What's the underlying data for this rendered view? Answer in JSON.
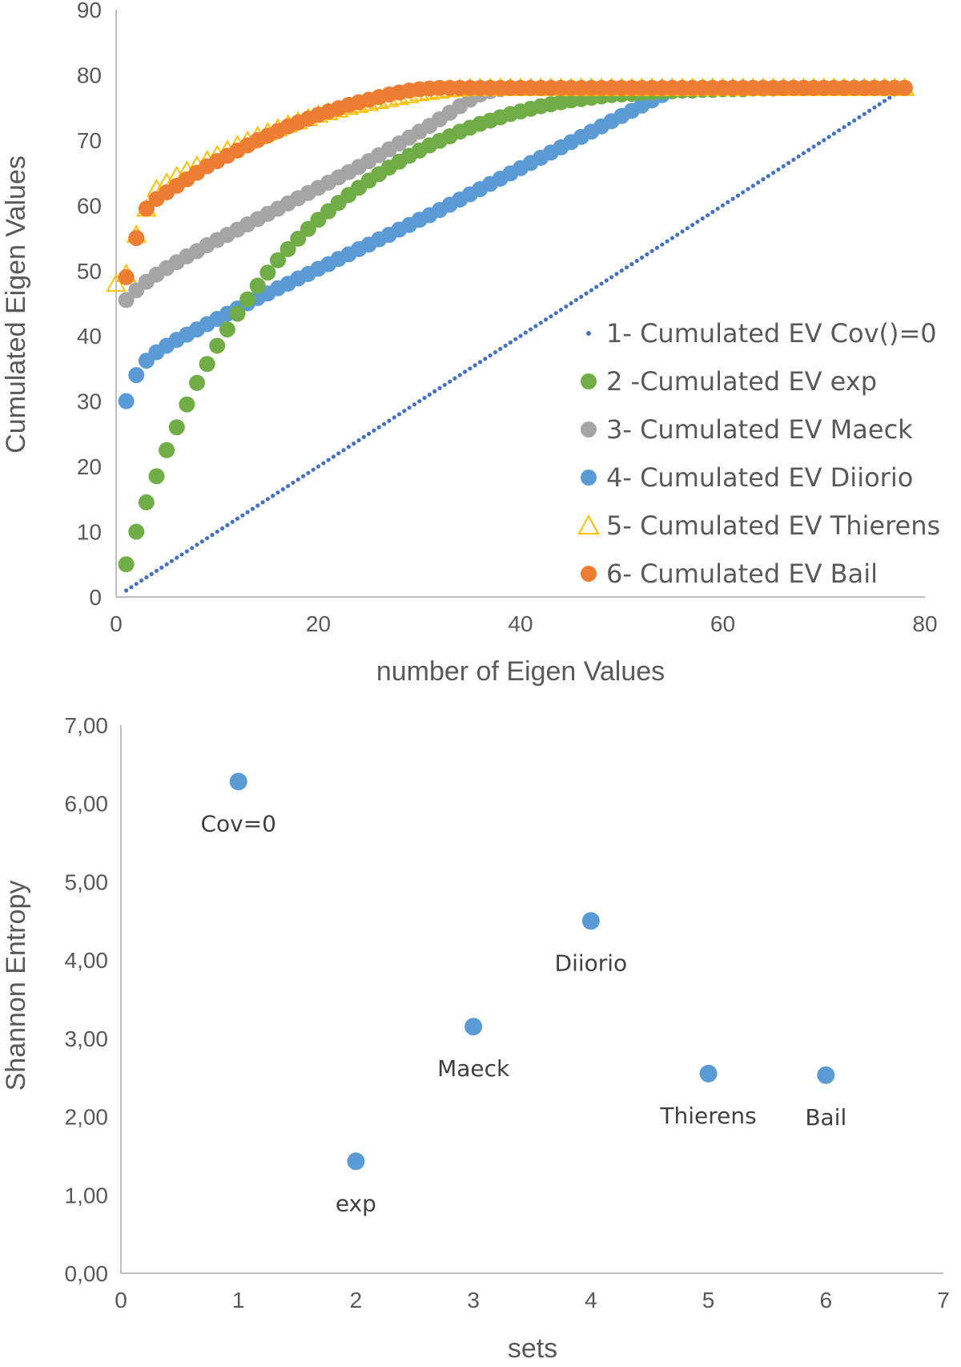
{
  "colors": {
    "cov0": "#4472c4",
    "exp": "#70ad47",
    "maeck": "#a5a5a5",
    "diiorio": "#5b9bd5",
    "thierens": "#ffc000",
    "bail": "#ed7d31",
    "entropy_points": "#5b9bd5",
    "axis": "#bfbfbf",
    "text": "#595959"
  },
  "chart_data": [
    {
      "type": "scatter",
      "title": "",
      "xlabel": "number of Eigen Values",
      "ylabel": "Cumulated Eigen Values",
      "xlim": [
        0,
        80
      ],
      "ylim": [
        0,
        90
      ],
      "x_ticks": [
        "0",
        "20",
        "40",
        "60",
        "80"
      ],
      "y_ticks": [
        "0",
        "10",
        "20",
        "30",
        "40",
        "50",
        "60",
        "70",
        "80",
        "90"
      ],
      "legend_position": "right",
      "series": [
        {
          "name": "1- Cumulated EV Cov()=0",
          "key": "cov0",
          "marker": "small-dot",
          "x": [
            1,
            78
          ],
          "y": [
            1,
            78
          ],
          "sampling": "every 0.5 eigen value, linear"
        },
        {
          "name": "2 -Cumulated EV exp",
          "key": "exp",
          "marker": "circle",
          "x": [
            1,
            2,
            3,
            4,
            5,
            6,
            7,
            8,
            9,
            10,
            11,
            12,
            13,
            14,
            15,
            16,
            17,
            18,
            19,
            20,
            21,
            22,
            23,
            24,
            25,
            26,
            27,
            28,
            29,
            30,
            31,
            32,
            33,
            34,
            35,
            36,
            37,
            38,
            39,
            40,
            41,
            42,
            43,
            44,
            45,
            46,
            47,
            48,
            49,
            50,
            51,
            52,
            53,
            54,
            55,
            56,
            57,
            58,
            59,
            60,
            61,
            62,
            63,
            64,
            65,
            66,
            67,
            68,
            69,
            70,
            71,
            72,
            73,
            74,
            75,
            76,
            77,
            78
          ],
          "y": [
            5,
            10,
            14.5,
            18.5,
            22.5,
            26,
            29.5,
            32.8,
            35.7,
            38.5,
            41,
            43.4,
            45.6,
            47.7,
            49.7,
            51.6,
            53.3,
            54.9,
            56.4,
            57.8,
            59.1,
            60.4,
            61.6,
            62.7,
            63.8,
            64.8,
            65.8,
            66.7,
            67.6,
            68.4,
            69.2,
            69.9,
            70.6,
            71.3,
            71.9,
            72.5,
            73,
            73.5,
            74,
            74.4,
            74.8,
            75.2,
            75.5,
            75.8,
            76.1,
            76.3,
            76.5,
            76.7,
            76.9,
            77,
            77.1,
            77.2,
            77.3,
            77.4,
            77.5,
            77.6,
            77.6,
            77.7,
            77.7,
            77.8,
            77.8,
            77.8,
            77.9,
            77.9,
            77.9,
            78,
            78,
            78,
            78,
            78,
            78,
            78,
            78,
            78,
            78,
            78,
            78,
            78
          ]
        },
        {
          "name": "3- Cumulated EV Maeck",
          "key": "maeck",
          "marker": "circle",
          "x": [
            1,
            2,
            3,
            4,
            5,
            6,
            7,
            8,
            9,
            10,
            11,
            12,
            13,
            14,
            15,
            16,
            17,
            18,
            19,
            20,
            21,
            22,
            23,
            24,
            25,
            26,
            27,
            28,
            29,
            30,
            31,
            32,
            33,
            34,
            35,
            36,
            37,
            38,
            39,
            40
          ],
          "y": [
            45.5,
            47,
            48.3,
            49.4,
            50.4,
            51.3,
            52.2,
            53,
            53.9,
            54.7,
            55.5,
            56.3,
            57.1,
            57.9,
            58.7,
            59.5,
            60.3,
            61.1,
            61.9,
            62.7,
            63.5,
            64.3,
            65.1,
            65.9,
            66.8,
            67.7,
            68.6,
            69.5,
            70.4,
            71.3,
            72.2,
            73.2,
            74.2,
            75.2,
            76.2,
            77,
            77.5,
            77.8,
            78,
            78
          ]
        },
        {
          "name": "4- Cumulated EV Diiorio",
          "key": "diiorio",
          "marker": "circle",
          "x": [
            1,
            2,
            3,
            4,
            5,
            6,
            7,
            8,
            9,
            10,
            11,
            12,
            13,
            14,
            15,
            16,
            17,
            18,
            19,
            20,
            21,
            22,
            23,
            24,
            25,
            26,
            27,
            28,
            29,
            30,
            31,
            32,
            33,
            34,
            35,
            36,
            37,
            38,
            39,
            40,
            41,
            42,
            43,
            44,
            45,
            46,
            47,
            48,
            49,
            50,
            51,
            52,
            53,
            54,
            55,
            56,
            57,
            58,
            59,
            60,
            61,
            62,
            63,
            64,
            65,
            66,
            67,
            68,
            69,
            70,
            71,
            72,
            73,
            74,
            75,
            76,
            77,
            78
          ],
          "y": [
            30,
            34,
            36.2,
            37.5,
            38.5,
            39.4,
            40.2,
            41,
            41.8,
            42.6,
            43.4,
            44.2,
            45,
            45.8,
            46.5,
            47.3,
            48,
            48.8,
            49.5,
            50.3,
            51,
            51.8,
            52.5,
            53.3,
            54,
            54.8,
            55.5,
            56.3,
            57,
            57.8,
            58.5,
            59.3,
            60.1,
            60.9,
            61.7,
            62.5,
            63.3,
            64.1,
            64.9,
            65.7,
            66.5,
            67.3,
            68.1,
            68.9,
            69.7,
            70.5,
            71.3,
            72.1,
            72.9,
            73.7,
            74.5,
            75.3,
            76.1,
            76.9,
            77.5,
            77.8,
            78,
            78,
            78,
            78,
            78,
            78,
            78,
            78,
            78,
            78,
            78,
            78,
            78,
            78,
            78,
            78,
            78,
            78,
            78,
            78,
            78,
            78
          ]
        },
        {
          "name": "5- Cumulated EV Thierens",
          "key": "thierens",
          "marker": "triangle",
          "x": [
            0,
            1,
            2,
            3,
            4,
            5,
            6,
            7,
            8,
            9,
            10,
            11,
            12,
            13,
            14,
            15,
            16,
            17,
            18,
            19,
            20,
            21,
            22,
            23,
            24,
            25,
            26,
            27,
            28,
            29,
            30,
            31,
            32,
            33,
            34,
            35,
            36,
            37,
            38,
            39,
            40,
            41,
            42,
            43,
            44,
            45,
            46,
            47,
            48,
            49,
            50,
            51,
            52,
            53,
            54,
            55,
            56,
            57,
            58,
            59,
            60,
            61,
            62,
            63,
            64,
            65,
            66,
            67,
            68,
            69,
            70,
            71,
            72,
            73,
            74,
            75,
            76,
            77,
            78
          ],
          "y": [
            48,
            49.5,
            55.5,
            59.5,
            62.5,
            63.5,
            64.5,
            65.3,
            66.1,
            66.9,
            67.7,
            68.5,
            69.2,
            69.9,
            70.6,
            71.2,
            71.8,
            72.4,
            72.9,
            73.4,
            73.9,
            74.3,
            74.7,
            75.1,
            75.4,
            75.7,
            76,
            76.3,
            76.6,
            76.9,
            77.2,
            77.4,
            77.6,
            77.8,
            77.9,
            78,
            78,
            78,
            78,
            78,
            78,
            78,
            78,
            78,
            78,
            78,
            78,
            78,
            78,
            78,
            78,
            78,
            78,
            78,
            78,
            78,
            78,
            78,
            78,
            78,
            78,
            78,
            78,
            78,
            78,
            78,
            78,
            78,
            78,
            78,
            78,
            78,
            78,
            78,
            78,
            78,
            78,
            78,
            78
          ]
        },
        {
          "name": "6- Cumulated EV Bail",
          "key": "bail",
          "marker": "circle",
          "x": [
            1,
            2,
            3,
            4,
            5,
            6,
            7,
            8,
            9,
            10,
            11,
            12,
            13,
            14,
            15,
            16,
            17,
            18,
            19,
            20,
            21,
            22,
            23,
            24,
            25,
            26,
            27,
            28,
            29,
            30,
            31,
            32,
            33,
            34,
            35,
            36,
            37,
            38,
            39,
            40,
            41,
            42,
            43,
            44,
            45,
            46,
            47,
            48,
            49,
            50,
            51,
            52,
            53,
            54,
            55,
            56,
            57,
            58,
            59,
            60,
            61,
            62,
            63,
            64,
            65,
            66,
            67,
            68,
            69,
            70,
            71,
            72,
            73,
            74,
            75,
            76,
            77,
            78
          ],
          "y": [
            49,
            55,
            59.5,
            61,
            62,
            63,
            64,
            65,
            66,
            66.8,
            67.6,
            68.4,
            69.2,
            70,
            70.7,
            71.4,
            72.1,
            72.7,
            73.3,
            73.9,
            74.4,
            74.9,
            75.4,
            75.8,
            76.2,
            76.6,
            77,
            77.3,
            77.6,
            77.8,
            77.9,
            78,
            78,
            78,
            78,
            78,
            78,
            78,
            78,
            78,
            78,
            78,
            78,
            78,
            78,
            78,
            78,
            78,
            78,
            78,
            78,
            78,
            78,
            78,
            78,
            78,
            78,
            78,
            78,
            78,
            78,
            78,
            78,
            78,
            78,
            78,
            78,
            78,
            78,
            78,
            78,
            78,
            78,
            78,
            78,
            78,
            78,
            78
          ]
        }
      ]
    },
    {
      "type": "scatter",
      "title": "",
      "xlabel": "sets",
      "ylabel": "Shannon Entropy",
      "xlim": [
        0,
        7
      ],
      "ylim": [
        0,
        7
      ],
      "x_ticks": [
        "0",
        "1",
        "2",
        "3",
        "4",
        "5",
        "6",
        "7"
      ],
      "y_ticks": [
        "0,00",
        "1,00",
        "2,00",
        "3,00",
        "4,00",
        "5,00",
        "6,00",
        "7,00"
      ],
      "points": [
        {
          "x": 1,
          "y": 6.28,
          "label": "Cov=0"
        },
        {
          "x": 2,
          "y": 1.43,
          "label": "exp"
        },
        {
          "x": 3,
          "y": 3.15,
          "label": "Maeck"
        },
        {
          "x": 4,
          "y": 4.5,
          "label": "Diiorio"
        },
        {
          "x": 5,
          "y": 2.55,
          "label": "Thierens"
        },
        {
          "x": 6,
          "y": 2.53,
          "label": "Bail"
        }
      ]
    }
  ]
}
